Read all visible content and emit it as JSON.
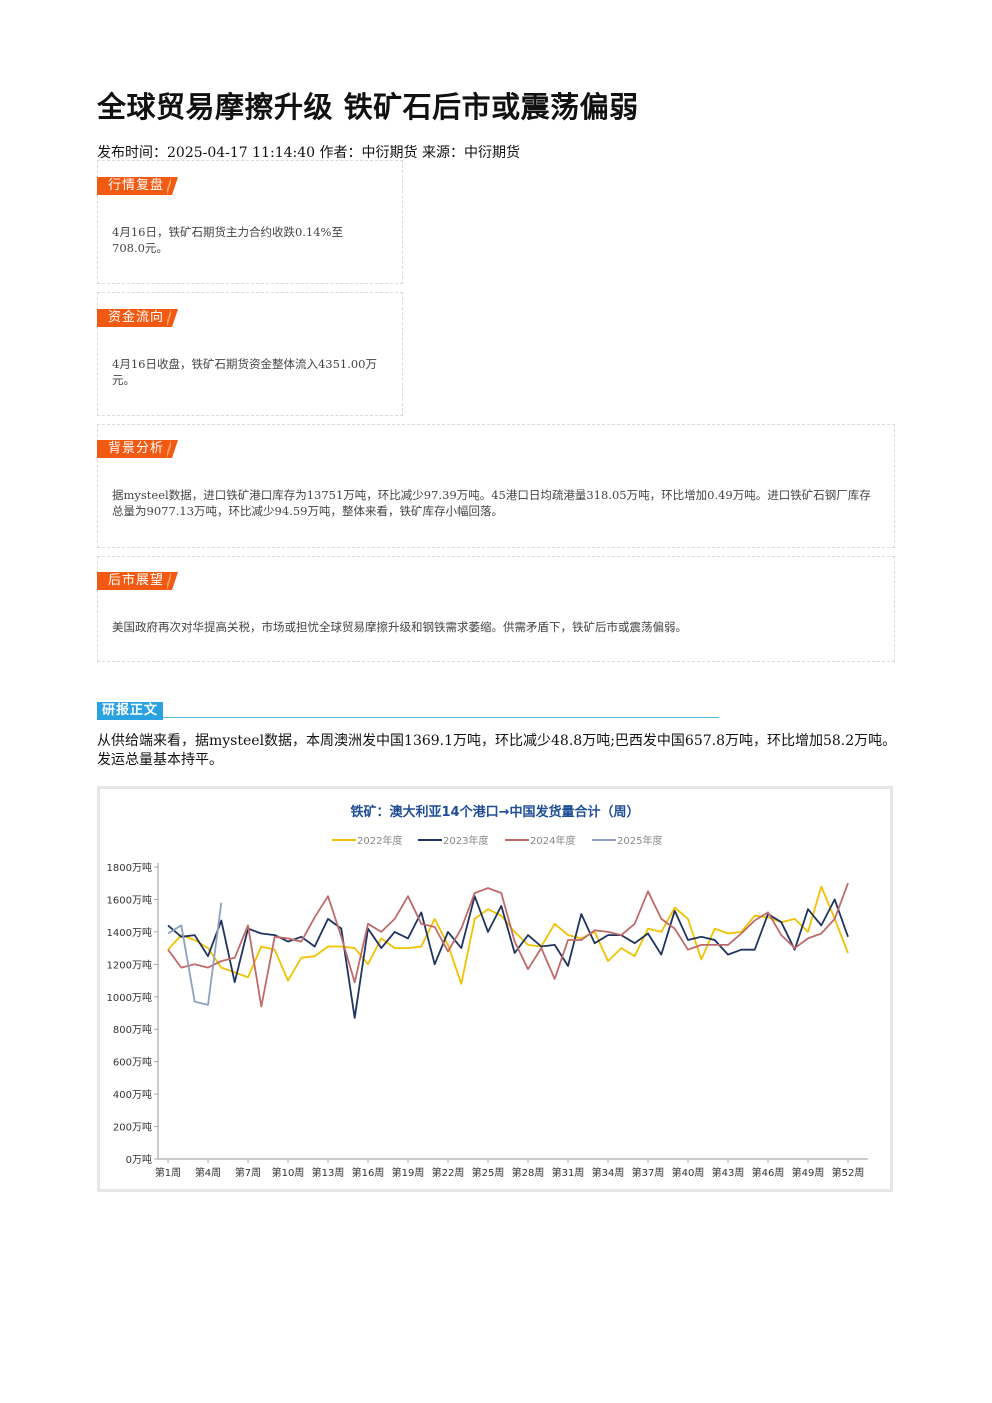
{
  "article": {
    "title": "全球贸易摩擦升级 铁矿石后市或震荡偏弱",
    "meta": "发布时间：2025-04-17 11:14:40 作者：中衍期货 来源：中衍期货"
  },
  "cards": [
    {
      "tag": "行情复盘",
      "text": "4月16日，铁矿石期货主力合约收跌0.14%至708.0元。"
    },
    {
      "tag": "资金流向",
      "text": "4月16日收盘，铁矿石期货资金整体流入4351.00万元。"
    },
    {
      "tag": "背景分析",
      "text": "据mysteel数据，进口铁矿港口库存为13751万吨，环比减少97.39万吨。45港口日均疏港量318.05万吨，环比增加0.49万吨。进口铁矿石钢厂库存总量为9077.13万吨，环比减少94.59万吨，整体来看，铁矿库存小幅回落。"
    },
    {
      "tag": "后市展望",
      "text": "美国政府再次对华提高关税，市场或担忧全球贸易摩擦升级和钢铁需求萎缩。供需矛盾下，铁矿后市或震荡偏弱。"
    }
  ],
  "section": {
    "label": "研报正文",
    "paragraph": "从供给端来看，据mysteel数据，本周澳洲发中国1369.1万吨，环比减少48.8万吨;巴西发中国657.8万吨，环比增加58.2万吨。发运总量基本持平。"
  },
  "chart_data": {
    "type": "line",
    "title": "铁矿：澳大利亚14个港口→中国发货量合计（周）",
    "ylim": [
      0,
      1800
    ],
    "y_ticks": [
      "0万吨",
      "200万吨",
      "400万吨",
      "600万吨",
      "800万吨",
      "1000万吨",
      "1200万吨",
      "1400万吨",
      "1600万吨",
      "1800万吨"
    ],
    "x_ticks": [
      "第1周",
      "第4周",
      "第7周",
      "第10周",
      "第13周",
      "第16周",
      "第19周",
      "第22周",
      "第25周",
      "第28周",
      "第31周",
      "第34周",
      "第37周",
      "第40周",
      "第43周",
      "第46周",
      "第49周",
      "第52周"
    ],
    "x_tick_weeks": [
      1,
      4,
      7,
      10,
      13,
      16,
      19,
      22,
      25,
      28,
      31,
      34,
      37,
      40,
      43,
      46,
      49,
      52
    ],
    "legend_position": "top",
    "series": [
      {
        "name": "2022年度",
        "color": "#f2c200",
        "values": [
          1290,
          1380,
          1350,
          1300,
          1180,
          1150,
          1120,
          1310,
          1290,
          1100,
          1240,
          1250,
          1310,
          1310,
          1300,
          1200,
          1360,
          1300,
          1300,
          1310,
          1480,
          1320,
          1080,
          1480,
          1540,
          1500,
          1400,
          1320,
          1310,
          1450,
          1380,
          1360,
          1400,
          1220,
          1300,
          1250,
          1420,
          1400,
          1550,
          1480,
          1230,
          1420,
          1390,
          1400,
          1500,
          1490,
          1460,
          1480,
          1400,
          1680,
          1480,
          1270
        ]
      },
      {
        "name": "2023年度",
        "color": "#1f3460",
        "values": [
          1440,
          1370,
          1380,
          1250,
          1470,
          1090,
          1420,
          1390,
          1380,
          1340,
          1370,
          1310,
          1480,
          1420,
          870,
          1420,
          1300,
          1400,
          1360,
          1520,
          1200,
          1400,
          1300,
          1620,
          1400,
          1560,
          1270,
          1380,
          1310,
          1320,
          1190,
          1510,
          1330,
          1380,
          1380,
          1330,
          1390,
          1260,
          1530,
          1350,
          1370,
          1350,
          1260,
          1290,
          1290,
          1510,
          1460,
          1290,
          1540,
          1440,
          1600,
          1370
        ]
      },
      {
        "name": "2024年度",
        "color": "#c06a6a",
        "values": [
          1290,
          1180,
          1200,
          1180,
          1220,
          1240,
          1440,
          940,
          1370,
          1360,
          1340,
          1490,
          1620,
          1370,
          1090,
          1450,
          1400,
          1480,
          1620,
          1450,
          1430,
          1280,
          1420,
          1640,
          1670,
          1640,
          1340,
          1170,
          1300,
          1110,
          1350,
          1350,
          1410,
          1400,
          1380,
          1450,
          1650,
          1480,
          1420,
          1290,
          1320,
          1320,
          1320,
          1390,
          1470,
          1520,
          1380,
          1300,
          1360,
          1390,
          1480,
          1700
        ]
      },
      {
        "name": "2025年度",
        "color": "#8ea0c0",
        "values": [
          1390,
          1440,
          970,
          950,
          1580
        ]
      }
    ]
  }
}
